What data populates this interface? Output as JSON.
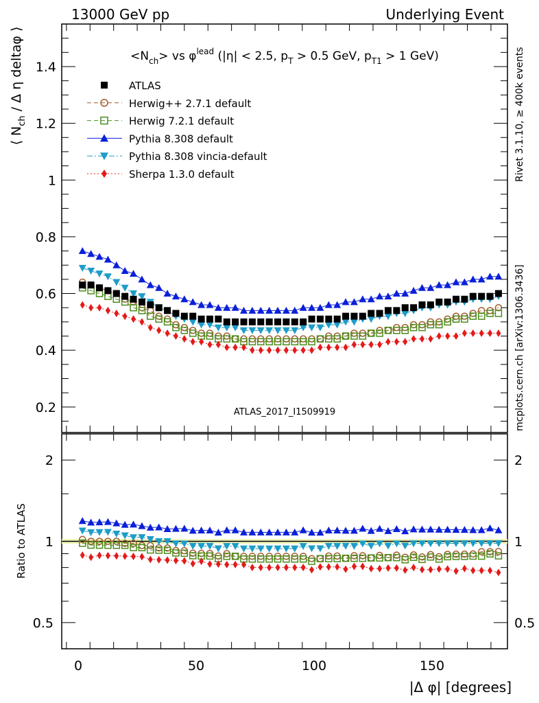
{
  "header": {
    "left": "13000 GeV pp",
    "right": "Underlying Event"
  },
  "side_labels": {
    "top": "Rivet 3.1.10, ≥ 400k events",
    "bottom": "mcplots.cern.ch [arXiv:1306.3436]"
  },
  "watermark": "ATLAS_2017_I1509919",
  "chart_data": {
    "type": "scatter",
    "title": "<N_ch> vs φ^lead (|η| < 2.5, p_T > 0.5 GeV, p_T1 > 1 GeV)",
    "xlabel": "|Δ φ| [degrees]",
    "ylabel": "⟨ N_ch / Δ η deltaφ ⟩",
    "ratio_ylabel": "Ratio to ATLAS",
    "xlim": [
      -7,
      182
    ],
    "ylim": [
      0.11,
      1.55
    ],
    "ratio_ylim": [
      0.4,
      2.5
    ],
    "ratio_scale": "log",
    "x_ticks": [
      0,
      50,
      100,
      150
    ],
    "y_ticks": [
      0.2,
      0.4,
      0.6,
      0.8,
      1,
      1.2,
      1.4
    ],
    "y_tick_labels": [
      "0.2",
      "0.4",
      "0.6",
      "0.8",
      "1",
      "1.2",
      "1.4"
    ],
    "ratio_ticks": [
      0.5,
      1,
      2
    ],
    "ratio_tick_labels": [
      "0.5",
      "1",
      "2"
    ],
    "legend_position": "top-left",
    "x_start": 1.8,
    "x_step": 3.6,
    "series": [
      {
        "name": "ATLAS",
        "color": "#000000",
        "marker": "square-filled",
        "line": "none",
        "values": [
          0.63,
          0.63,
          0.62,
          0.61,
          0.6,
          0.59,
          0.58,
          0.57,
          0.56,
          0.55,
          0.54,
          0.53,
          0.52,
          0.52,
          0.51,
          0.51,
          0.51,
          0.5,
          0.5,
          0.5,
          0.5,
          0.5,
          0.5,
          0.5,
          0.5,
          0.5,
          0.5,
          0.51,
          0.51,
          0.51,
          0.51,
          0.52,
          0.52,
          0.52,
          0.53,
          0.53,
          0.54,
          0.54,
          0.55,
          0.55,
          0.56,
          0.56,
          0.57,
          0.57,
          0.58,
          0.58,
          0.59,
          0.59,
          0.59,
          0.6
        ]
      },
      {
        "name": "Herwig++ 2.7.1 default",
        "color": "#a05a2c",
        "marker": "circle-open",
        "line": "dashed",
        "values": [
          0.64,
          0.63,
          0.62,
          0.61,
          0.6,
          0.58,
          0.57,
          0.55,
          0.54,
          0.52,
          0.51,
          0.49,
          0.48,
          0.47,
          0.46,
          0.46,
          0.45,
          0.45,
          0.44,
          0.44,
          0.44,
          0.44,
          0.44,
          0.44,
          0.44,
          0.44,
          0.44,
          0.44,
          0.44,
          0.45,
          0.45,
          0.45,
          0.46,
          0.46,
          0.46,
          0.47,
          0.47,
          0.48,
          0.48,
          0.49,
          0.49,
          0.5,
          0.5,
          0.51,
          0.52,
          0.52,
          0.53,
          0.54,
          0.54,
          0.55
        ]
      },
      {
        "name": "Herwig 7.2.1 default",
        "color": "#4b8c1a",
        "marker": "square-open",
        "line": "dashed",
        "values": [
          0.62,
          0.61,
          0.6,
          0.59,
          0.58,
          0.57,
          0.55,
          0.54,
          0.52,
          0.51,
          0.5,
          0.48,
          0.47,
          0.46,
          0.45,
          0.45,
          0.44,
          0.44,
          0.44,
          0.43,
          0.43,
          0.43,
          0.43,
          0.43,
          0.43,
          0.43,
          0.43,
          0.43,
          0.44,
          0.44,
          0.44,
          0.45,
          0.45,
          0.45,
          0.46,
          0.46,
          0.47,
          0.47,
          0.47,
          0.48,
          0.48,
          0.49,
          0.49,
          0.5,
          0.51,
          0.51,
          0.52,
          0.52,
          0.53,
          0.53
        ]
      },
      {
        "name": "Pythia 8.308 default",
        "color": "#0b20d8",
        "marker": "triangle-up",
        "line": "solid",
        "values": [
          0.75,
          0.74,
          0.73,
          0.72,
          0.7,
          0.68,
          0.67,
          0.65,
          0.63,
          0.62,
          0.6,
          0.59,
          0.58,
          0.57,
          0.56,
          0.56,
          0.55,
          0.55,
          0.55,
          0.54,
          0.54,
          0.54,
          0.54,
          0.54,
          0.54,
          0.54,
          0.55,
          0.55,
          0.55,
          0.56,
          0.56,
          0.57,
          0.57,
          0.58,
          0.58,
          0.59,
          0.59,
          0.6,
          0.6,
          0.61,
          0.62,
          0.62,
          0.63,
          0.63,
          0.64,
          0.64,
          0.65,
          0.65,
          0.66,
          0.66
        ]
      },
      {
        "name": "Pythia 8.308 vincia-default",
        "color": "#1e9cc8",
        "marker": "triangle-down",
        "line": "dashdot",
        "values": [
          0.69,
          0.68,
          0.67,
          0.66,
          0.64,
          0.62,
          0.6,
          0.59,
          0.57,
          0.55,
          0.54,
          0.52,
          0.51,
          0.5,
          0.49,
          0.49,
          0.48,
          0.48,
          0.48,
          0.47,
          0.47,
          0.47,
          0.47,
          0.47,
          0.47,
          0.47,
          0.48,
          0.48,
          0.48,
          0.49,
          0.49,
          0.5,
          0.5,
          0.51,
          0.51,
          0.52,
          0.52,
          0.53,
          0.53,
          0.54,
          0.55,
          0.55,
          0.56,
          0.56,
          0.57,
          0.57,
          0.58,
          0.58,
          0.58,
          0.59
        ]
      },
      {
        "name": "Sherpa 1.3.0 default",
        "color": "#e41a1a",
        "marker": "diamond",
        "line": "dotted",
        "values": [
          0.56,
          0.55,
          0.55,
          0.54,
          0.53,
          0.52,
          0.51,
          0.5,
          0.48,
          0.47,
          0.46,
          0.45,
          0.44,
          0.43,
          0.43,
          0.42,
          0.42,
          0.41,
          0.41,
          0.41,
          0.4,
          0.4,
          0.4,
          0.4,
          0.4,
          0.4,
          0.4,
          0.4,
          0.41,
          0.41,
          0.41,
          0.41,
          0.42,
          0.42,
          0.42,
          0.42,
          0.43,
          0.43,
          0.43,
          0.44,
          0.44,
          0.44,
          0.45,
          0.45,
          0.45,
          0.46,
          0.46,
          0.46,
          0.46,
          0.46
        ]
      }
    ]
  }
}
